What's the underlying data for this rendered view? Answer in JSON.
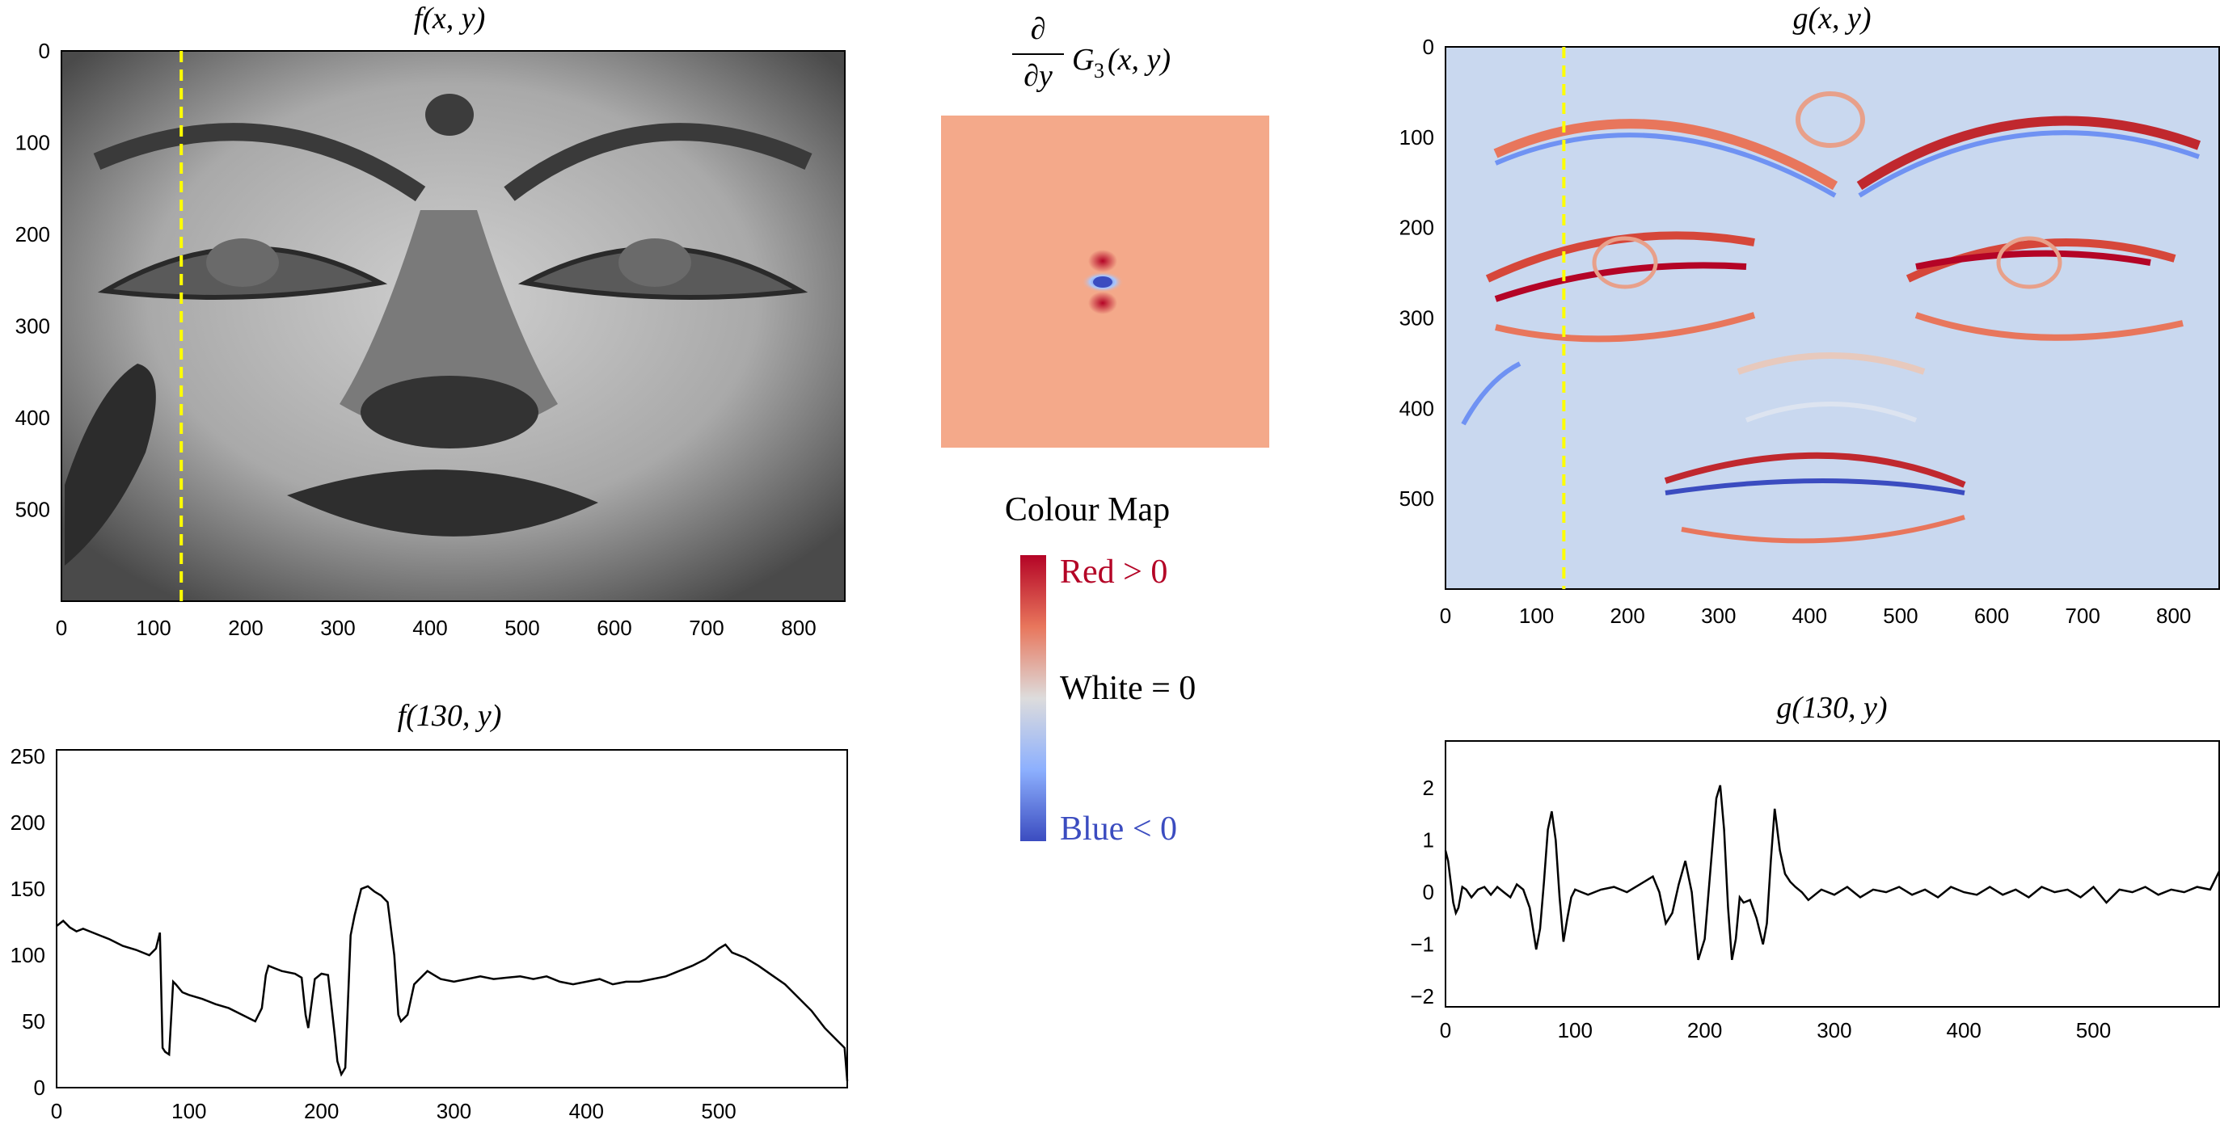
{
  "titles": {
    "f": "f(x, y)",
    "g": "g(x, y)",
    "kernel_num": "∂",
    "kernel_den": "∂y",
    "kernel_main": "G",
    "kernel_sub": "3",
    "kernel_args": "(x, y)",
    "f_profile": "f(130, y)",
    "g_profile": "g(130, y)"
  },
  "colormap": {
    "title": "Colour Map",
    "red_label": "Red > 0",
    "zero_label": "White = 0",
    "blue_label": "Blue < 0",
    "colors": {
      "red": "#b40426",
      "white": "#dddcdc",
      "blue": "#3b4cc0",
      "kernel_bg": "#f4a98a",
      "g_bg": "#c9d8ef"
    }
  },
  "chart_data": [
    {
      "type": "image",
      "id": "f_image",
      "title": "f(x, y)",
      "xlim": [
        0,
        850
      ],
      "ylim": [
        600,
        0
      ],
      "xticks": [
        0,
        100,
        200,
        300,
        400,
        500,
        600,
        700,
        800
      ],
      "yticks": [
        0,
        100,
        200,
        300,
        400,
        500
      ],
      "annotation": {
        "type": "dashed_vertical_line",
        "x": 130,
        "color": "#ffff00"
      }
    },
    {
      "type": "image",
      "id": "kernel_image",
      "title": "∂/∂y G3(x, y)"
    },
    {
      "type": "image",
      "id": "g_image",
      "title": "g(x, y)",
      "xlim": [
        0,
        850
      ],
      "ylim": [
        600,
        0
      ],
      "xticks": [
        0,
        100,
        200,
        300,
        400,
        500,
        600,
        700,
        800
      ],
      "yticks": [
        0,
        100,
        200,
        300,
        400,
        500
      ],
      "annotation": {
        "type": "dashed_vertical_line",
        "x": 130,
        "color": "#ffff00"
      }
    },
    {
      "type": "line",
      "id": "f_profile",
      "title": "f(130, y)",
      "xlim": [
        0,
        597
      ],
      "ylim": [
        0,
        255
      ],
      "xticks": [
        0,
        100,
        200,
        300,
        400,
        500
      ],
      "yticks": [
        0,
        50,
        100,
        150,
        200,
        250
      ],
      "x": [
        0,
        5,
        10,
        15,
        20,
        30,
        40,
        50,
        60,
        70,
        75,
        78,
        80,
        82,
        85,
        88,
        90,
        95,
        100,
        110,
        120,
        130,
        140,
        150,
        155,
        158,
        160,
        165,
        170,
        180,
        185,
        188,
        190,
        195,
        200,
        205,
        210,
        212,
        215,
        218,
        222,
        225,
        230,
        235,
        240,
        245,
        250,
        255,
        258,
        260,
        262,
        265,
        270,
        280,
        285,
        290,
        300,
        310,
        320,
        330,
        340,
        350,
        360,
        370,
        380,
        390,
        400,
        410,
        420,
        430,
        440,
        450,
        460,
        470,
        480,
        490,
        500,
        505,
        510,
        520,
        530,
        540,
        550,
        560,
        570,
        580,
        590,
        595,
        597
      ],
      "y": [
        122,
        126,
        121,
        118,
        120,
        116,
        112,
        107,
        104,
        100,
        105,
        117,
        30,
        27,
        25,
        80,
        78,
        72,
        70,
        67,
        63,
        60,
        55,
        50,
        60,
        85,
        92,
        90,
        88,
        86,
        83,
        55,
        45,
        82,
        86,
        85,
        40,
        20,
        10,
        15,
        115,
        130,
        150,
        152,
        148,
        145,
        140,
        100,
        55,
        50,
        52,
        55,
        78,
        88,
        85,
        82,
        80,
        82,
        84,
        82,
        83,
        84,
        82,
        84,
        80,
        78,
        80,
        82,
        78,
        80,
        80,
        82,
        84,
        88,
        92,
        97,
        105,
        108,
        102,
        98,
        92,
        85,
        78,
        68,
        58,
        45,
        35,
        30,
        5
      ]
    },
    {
      "type": "line",
      "id": "g_profile",
      "title": "g(130, y)",
      "xlim": [
        0,
        597
      ],
      "ylim": [
        -2.2,
        2.9
      ],
      "xticks": [
        0,
        100,
        200,
        300,
        400,
        500
      ],
      "yticks": [
        -2,
        -1,
        0,
        1,
        2
      ],
      "x": [
        0,
        2,
        4,
        6,
        8,
        10,
        13,
        16,
        20,
        25,
        30,
        35,
        40,
        45,
        50,
        55,
        60,
        65,
        70,
        73,
        76,
        79,
        82,
        85,
        88,
        91,
        94,
        97,
        100,
        105,
        110,
        120,
        130,
        140,
        150,
        160,
        165,
        170,
        175,
        180,
        185,
        190,
        195,
        200,
        203,
        206,
        209,
        212,
        215,
        218,
        221,
        224,
        227,
        230,
        235,
        240,
        245,
        248,
        251,
        254,
        258,
        262,
        266,
        270,
        275,
        280,
        290,
        300,
        310,
        320,
        330,
        340,
        350,
        360,
        370,
        380,
        390,
        400,
        410,
        420,
        430,
        440,
        450,
        460,
        470,
        480,
        490,
        500,
        510,
        520,
        530,
        540,
        550,
        560,
        570,
        580,
        590,
        597
      ],
      "y": [
        0.8,
        0.6,
        0.2,
        -0.2,
        -0.4,
        -0.3,
        0.1,
        0.05,
        -0.1,
        0.05,
        0.1,
        -0.05,
        0.1,
        0.0,
        -0.1,
        0.15,
        0.05,
        -0.3,
        -1.1,
        -0.7,
        0.2,
        1.2,
        1.55,
        1.0,
        -0.1,
        -0.95,
        -0.5,
        -0.1,
        0.05,
        0.0,
        -0.05,
        0.05,
        0.1,
        0.0,
        0.15,
        0.3,
        0.0,
        -0.6,
        -0.4,
        0.15,
        0.6,
        0.0,
        -1.3,
        -0.9,
        0.0,
        0.9,
        1.8,
        2.05,
        1.2,
        -0.3,
        -1.3,
        -0.9,
        -0.1,
        -0.2,
        -0.15,
        -0.5,
        -1.0,
        -0.6,
        0.6,
        1.6,
        0.8,
        0.35,
        0.2,
        0.1,
        0.0,
        -0.15,
        0.05,
        -0.05,
        0.1,
        -0.1,
        0.05,
        0.0,
        0.1,
        -0.05,
        0.05,
        -0.1,
        0.1,
        0.0,
        -0.05,
        0.1,
        -0.05,
        0.05,
        -0.1,
        0.1,
        0.0,
        0.05,
        -0.1,
        0.1,
        -0.2,
        0.05,
        0.0,
        0.1,
        -0.05,
        0.05,
        0.0,
        0.1,
        0.05,
        0.4
      ]
    }
  ]
}
